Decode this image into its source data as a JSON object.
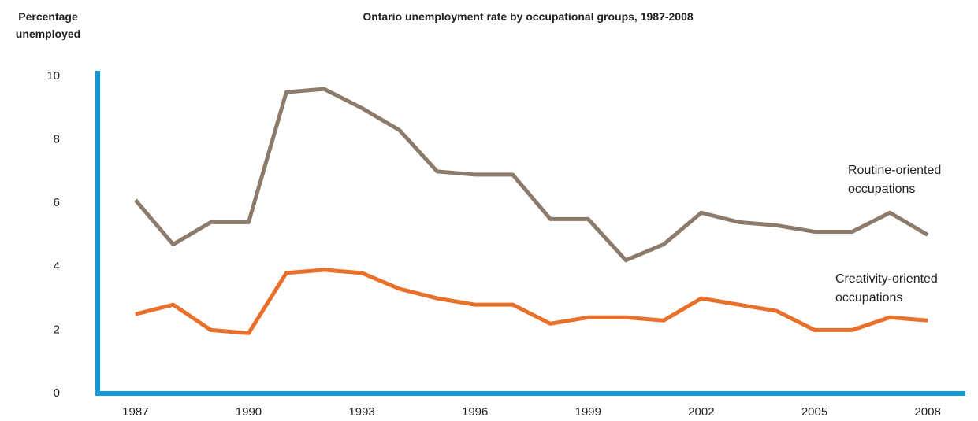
{
  "chart_data": {
    "type": "line",
    "title": "Ontario unemployment rate by occupational groups, 1987-2008",
    "ylabel": "Percentage unemployed",
    "x": [
      1987,
      1988,
      1989,
      1990,
      1991,
      1992,
      1993,
      1994,
      1995,
      1996,
      1997,
      1998,
      1999,
      2000,
      2001,
      2002,
      2003,
      2004,
      2005,
      2006,
      2007,
      2008
    ],
    "series": [
      {
        "name": "Routine-oriented occupations",
        "color": "#8c7b6b",
        "values": [
          6.1,
          4.7,
          5.4,
          5.4,
          9.5,
          9.6,
          9.0,
          8.3,
          7.0,
          6.9,
          6.9,
          5.5,
          5.5,
          4.2,
          4.7,
          5.7,
          5.4,
          5.3,
          5.1,
          5.1,
          5.7,
          5.0
        ]
      },
      {
        "name": "Creativity-oriented occupations",
        "color": "#e8702a",
        "values": [
          2.5,
          2.8,
          2.0,
          1.9,
          3.8,
          3.9,
          3.8,
          3.3,
          3.0,
          2.8,
          2.8,
          2.2,
          2.4,
          2.4,
          2.3,
          3.0,
          2.8,
          2.6,
          2.0,
          2.0,
          2.4,
          2.3
        ]
      }
    ],
    "xlim": [
      1986,
      2009
    ],
    "xticks": [
      1987,
      1990,
      1993,
      1996,
      1999,
      2002,
      2005,
      2008
    ],
    "ylim": [
      0,
      10
    ],
    "yticks": [
      0,
      2,
      4,
      6,
      8,
      10
    ],
    "axis_color": "#0f9ad6",
    "grid": false
  }
}
